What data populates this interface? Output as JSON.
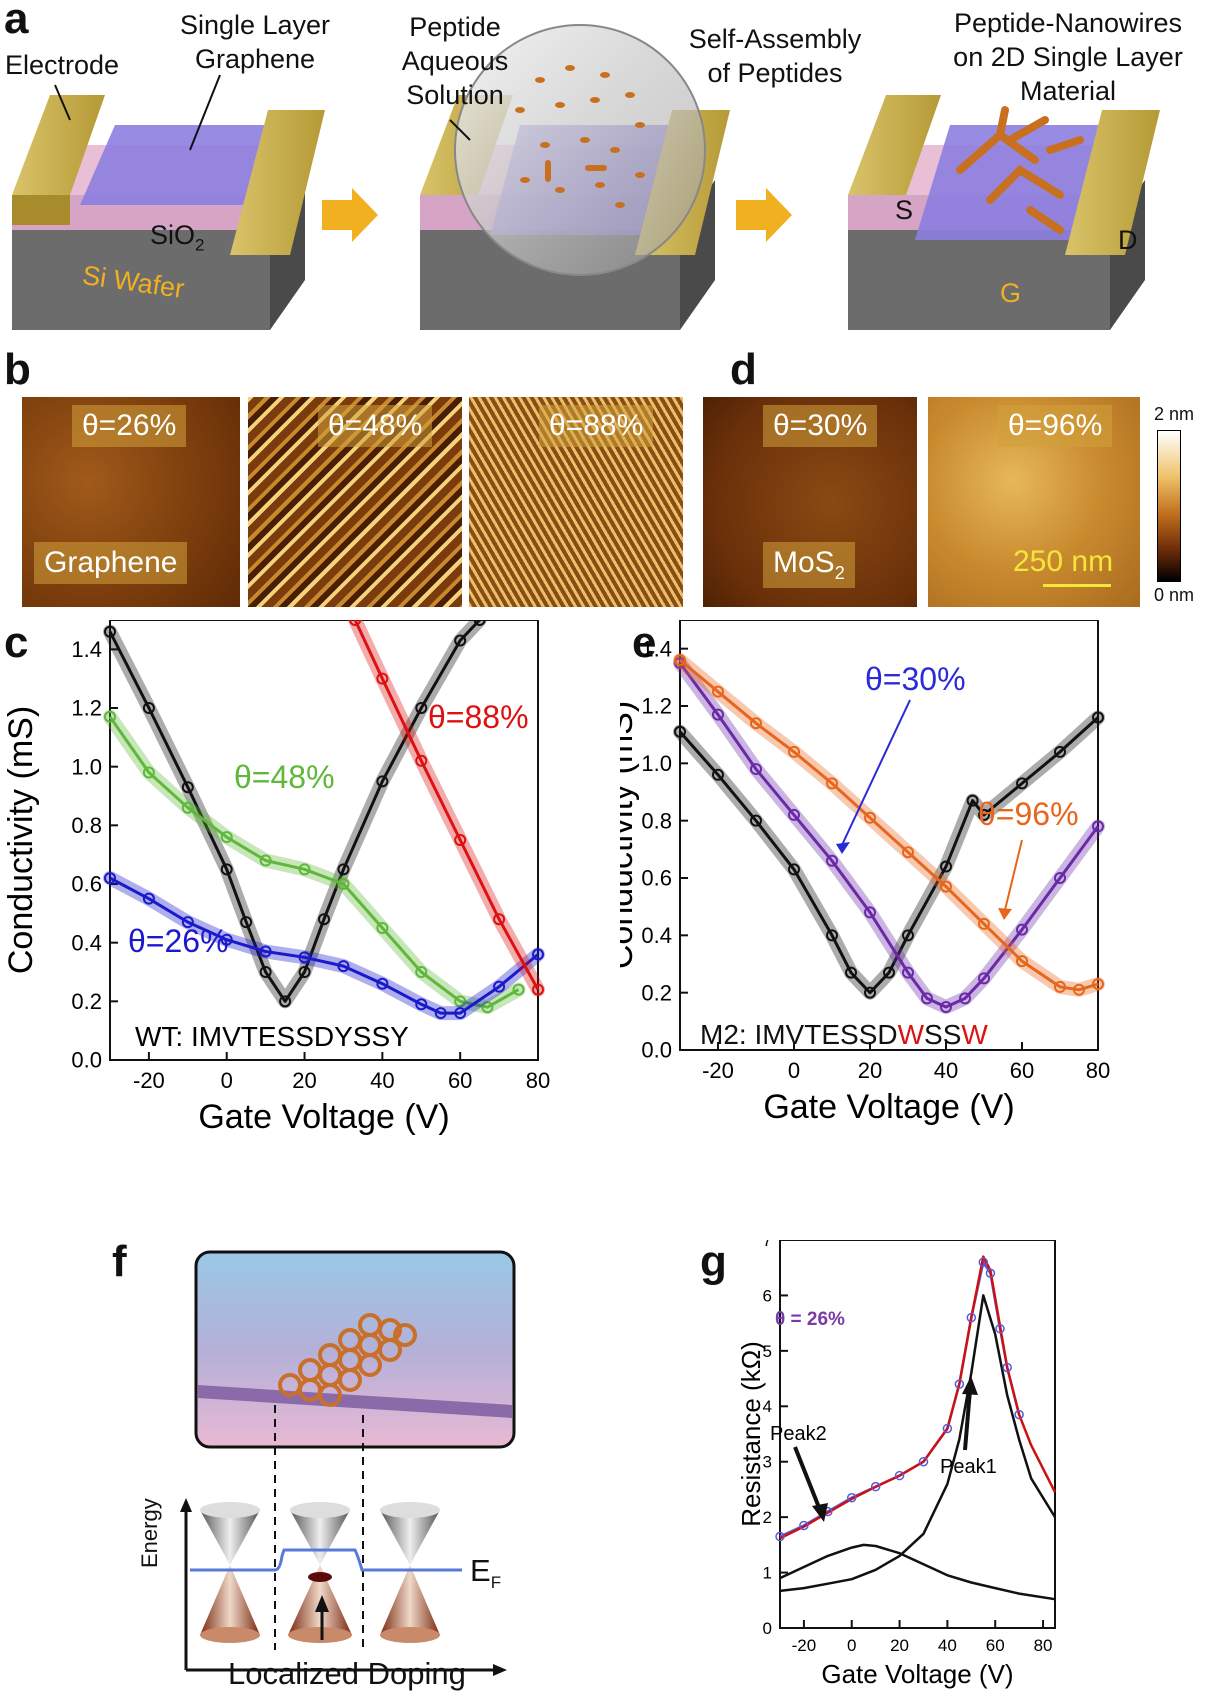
{
  "panel_letters": {
    "a": "a",
    "b": "b",
    "c": "c",
    "d": "d",
    "e": "e",
    "f": "f",
    "g": "g"
  },
  "panel_a": {
    "electrode": "Electrode",
    "graphene_line1": "Single Layer",
    "graphene_line2": "Graphene",
    "sio2": "SiO",
    "sio2_sub": "2",
    "si_wafer": "Si Wafer",
    "solution_line1": "Peptide",
    "solution_line2": "Aqueous",
    "solution_line3": "Solution",
    "assembly_line1": "Self-Assembly",
    "assembly_line2": "of Peptides",
    "nanowire_line1": "Peptide-Nanowires",
    "nanowire_line2": "on 2D Single Layer",
    "nanowire_line3": "Material",
    "source": "S",
    "drain": "D",
    "gate": "G"
  },
  "panel_b": {
    "tiles": [
      "θ=26%",
      "θ=48%",
      "θ=88%"
    ],
    "material": "Graphene"
  },
  "panel_d": {
    "tiles": [
      "θ=30%",
      "θ=96%"
    ],
    "material": "MoS",
    "material_sub": "2",
    "scalebar": "250 nm",
    "colorbar_max": "2 nm",
    "colorbar_min": "0 nm"
  },
  "panel_f": {
    "ylabel": "Energy",
    "ef": "E",
    "ef_sub": "F",
    "caption": "Localized Doping"
  },
  "chart_data": [
    {
      "panel": "c",
      "type": "line",
      "xlabel": "Gate Voltage (V)",
      "ylabel": "Conductivity (mS)",
      "xlim": [
        -30,
        80
      ],
      "ylim": [
        0.0,
        1.5
      ],
      "xticks": [
        -20,
        0,
        20,
        40,
        60,
        80
      ],
      "yticks": [
        0.0,
        0.2,
        0.4,
        0.6,
        0.8,
        1.0,
        1.2,
        1.4
      ],
      "annotation": "WT: IMVTESSDYSSY",
      "series": [
        {
          "name": "",
          "color": "#111111",
          "x": [
            -30,
            -20,
            -10,
            0,
            5,
            10,
            15,
            20,
            25,
            30,
            40,
            50,
            60,
            65
          ],
          "y": [
            1.46,
            1.2,
            0.93,
            0.65,
            0.47,
            0.3,
            0.2,
            0.3,
            0.48,
            0.65,
            0.95,
            1.2,
            1.43,
            1.5
          ]
        },
        {
          "name": "θ=48%",
          "color": "#5fb83a",
          "x": [
            -30,
            -20,
            -10,
            0,
            10,
            20,
            30,
            40,
            50,
            60,
            67,
            75
          ],
          "y": [
            1.17,
            0.98,
            0.86,
            0.76,
            0.68,
            0.65,
            0.6,
            0.45,
            0.3,
            0.2,
            0.18,
            0.24
          ]
        },
        {
          "name": "θ=26%",
          "color": "#1a1acc",
          "x": [
            -30,
            -20,
            -10,
            0,
            10,
            20,
            30,
            40,
            50,
            55,
            60,
            70,
            80
          ],
          "y": [
            0.62,
            0.55,
            0.47,
            0.41,
            0.37,
            0.35,
            0.32,
            0.26,
            0.19,
            0.16,
            0.16,
            0.25,
            0.36
          ]
        },
        {
          "name": "θ=88%",
          "color": "#dd1111",
          "x": [
            33,
            40,
            50,
            60,
            70,
            80
          ],
          "y": [
            1.5,
            1.3,
            1.02,
            0.75,
            0.48,
            0.24
          ]
        }
      ]
    },
    {
      "panel": "e",
      "type": "line",
      "xlabel": "Gate Voltage (V)",
      "ylabel": "Conductivity (mS)",
      "xlim": [
        -30,
        80
      ],
      "ylim": [
        0.0,
        1.5
      ],
      "xticks": [
        -20,
        0,
        20,
        40,
        60,
        80
      ],
      "yticks": [
        0.0,
        0.2,
        0.4,
        0.6,
        0.8,
        1.0,
        1.2,
        1.4
      ],
      "annotation_prefix": "M2: IMVTESSD",
      "annotation_w1": "W",
      "annotation_mid": "SS",
      "annotation_w2": "W",
      "series": [
        {
          "name": "",
          "color": "#111111",
          "x": [
            -30,
            -20,
            -10,
            0,
            10,
            15,
            20,
            25,
            30,
            40,
            47,
            50,
            60,
            70,
            80
          ],
          "y": [
            1.11,
            0.96,
            0.8,
            0.63,
            0.4,
            0.27,
            0.2,
            0.27,
            0.4,
            0.64,
            0.87,
            0.82,
            0.93,
            1.04,
            1.16
          ]
        },
        {
          "name": "θ=30%",
          "color": "#6a2aa8",
          "x": [
            -30,
            -20,
            -10,
            0,
            10,
            20,
            30,
            35,
            40,
            45,
            50,
            60,
            70,
            80
          ],
          "y": [
            1.35,
            1.17,
            0.98,
            0.82,
            0.66,
            0.48,
            0.27,
            0.18,
            0.15,
            0.18,
            0.25,
            0.42,
            0.6,
            0.78
          ]
        },
        {
          "name": "θ=96%",
          "color": "#e8651c",
          "x": [
            -30,
            -20,
            -10,
            0,
            10,
            20,
            30,
            40,
            50,
            60,
            70,
            75,
            80
          ],
          "y": [
            1.36,
            1.25,
            1.14,
            1.04,
            0.93,
            0.81,
            0.69,
            0.57,
            0.44,
            0.31,
            0.22,
            0.21,
            0.23
          ]
        }
      ]
    },
    {
      "panel": "g",
      "type": "line",
      "xlabel": "Gate Voltage (V)",
      "ylabel": "Resistance (kΩ)",
      "xlim": [
        -30,
        85
      ],
      "ylim": [
        0,
        7
      ],
      "xticks": [
        -20,
        0,
        20,
        40,
        60,
        80
      ],
      "yticks": [
        0,
        1,
        2,
        3,
        4,
        5,
        6,
        7
      ],
      "annotation": "θ = 26%",
      "peak1": "Peak1",
      "peak2": "Peak2",
      "series": [
        {
          "name": "",
          "color": "#5a5ad8",
          "x": [
            -30,
            -20,
            -10,
            0,
            10,
            20,
            30,
            40,
            45,
            50,
            55,
            58,
            62,
            65,
            70
          ],
          "y": [
            1.65,
            1.85,
            2.1,
            2.35,
            2.55,
            2.75,
            3.0,
            3.6,
            4.4,
            5.6,
            6.6,
            6.4,
            5.4,
            4.7,
            3.85
          ]
        },
        {
          "name": "",
          "color": "#cc1111",
          "x": [
            -30,
            -20,
            -10,
            0,
            10,
            20,
            30,
            40,
            45,
            50,
            55,
            58,
            62,
            65,
            70,
            75,
            85
          ],
          "y": [
            1.62,
            1.83,
            2.08,
            2.33,
            2.55,
            2.75,
            3.0,
            3.6,
            4.4,
            5.6,
            6.7,
            6.45,
            5.45,
            4.7,
            3.85,
            3.3,
            2.45
          ]
        },
        {
          "name": "",
          "color": "#111111",
          "x": [
            -30,
            -20,
            -10,
            0,
            10,
            20,
            30,
            40,
            45,
            50,
            55,
            60,
            65,
            70,
            75,
            85
          ],
          "y": [
            0.67,
            0.72,
            0.8,
            0.88,
            1.05,
            1.3,
            1.7,
            2.6,
            3.4,
            4.6,
            6.0,
            5.3,
            4.2,
            3.4,
            2.7,
            2.0
          ]
        },
        {
          "name": "",
          "color": "#111111",
          "x": [
            -30,
            -20,
            -10,
            0,
            5,
            10,
            20,
            30,
            40,
            50,
            60,
            70,
            85
          ],
          "y": [
            0.9,
            1.1,
            1.3,
            1.45,
            1.5,
            1.48,
            1.35,
            1.15,
            0.95,
            0.82,
            0.72,
            0.62,
            0.52
          ]
        }
      ]
    }
  ]
}
